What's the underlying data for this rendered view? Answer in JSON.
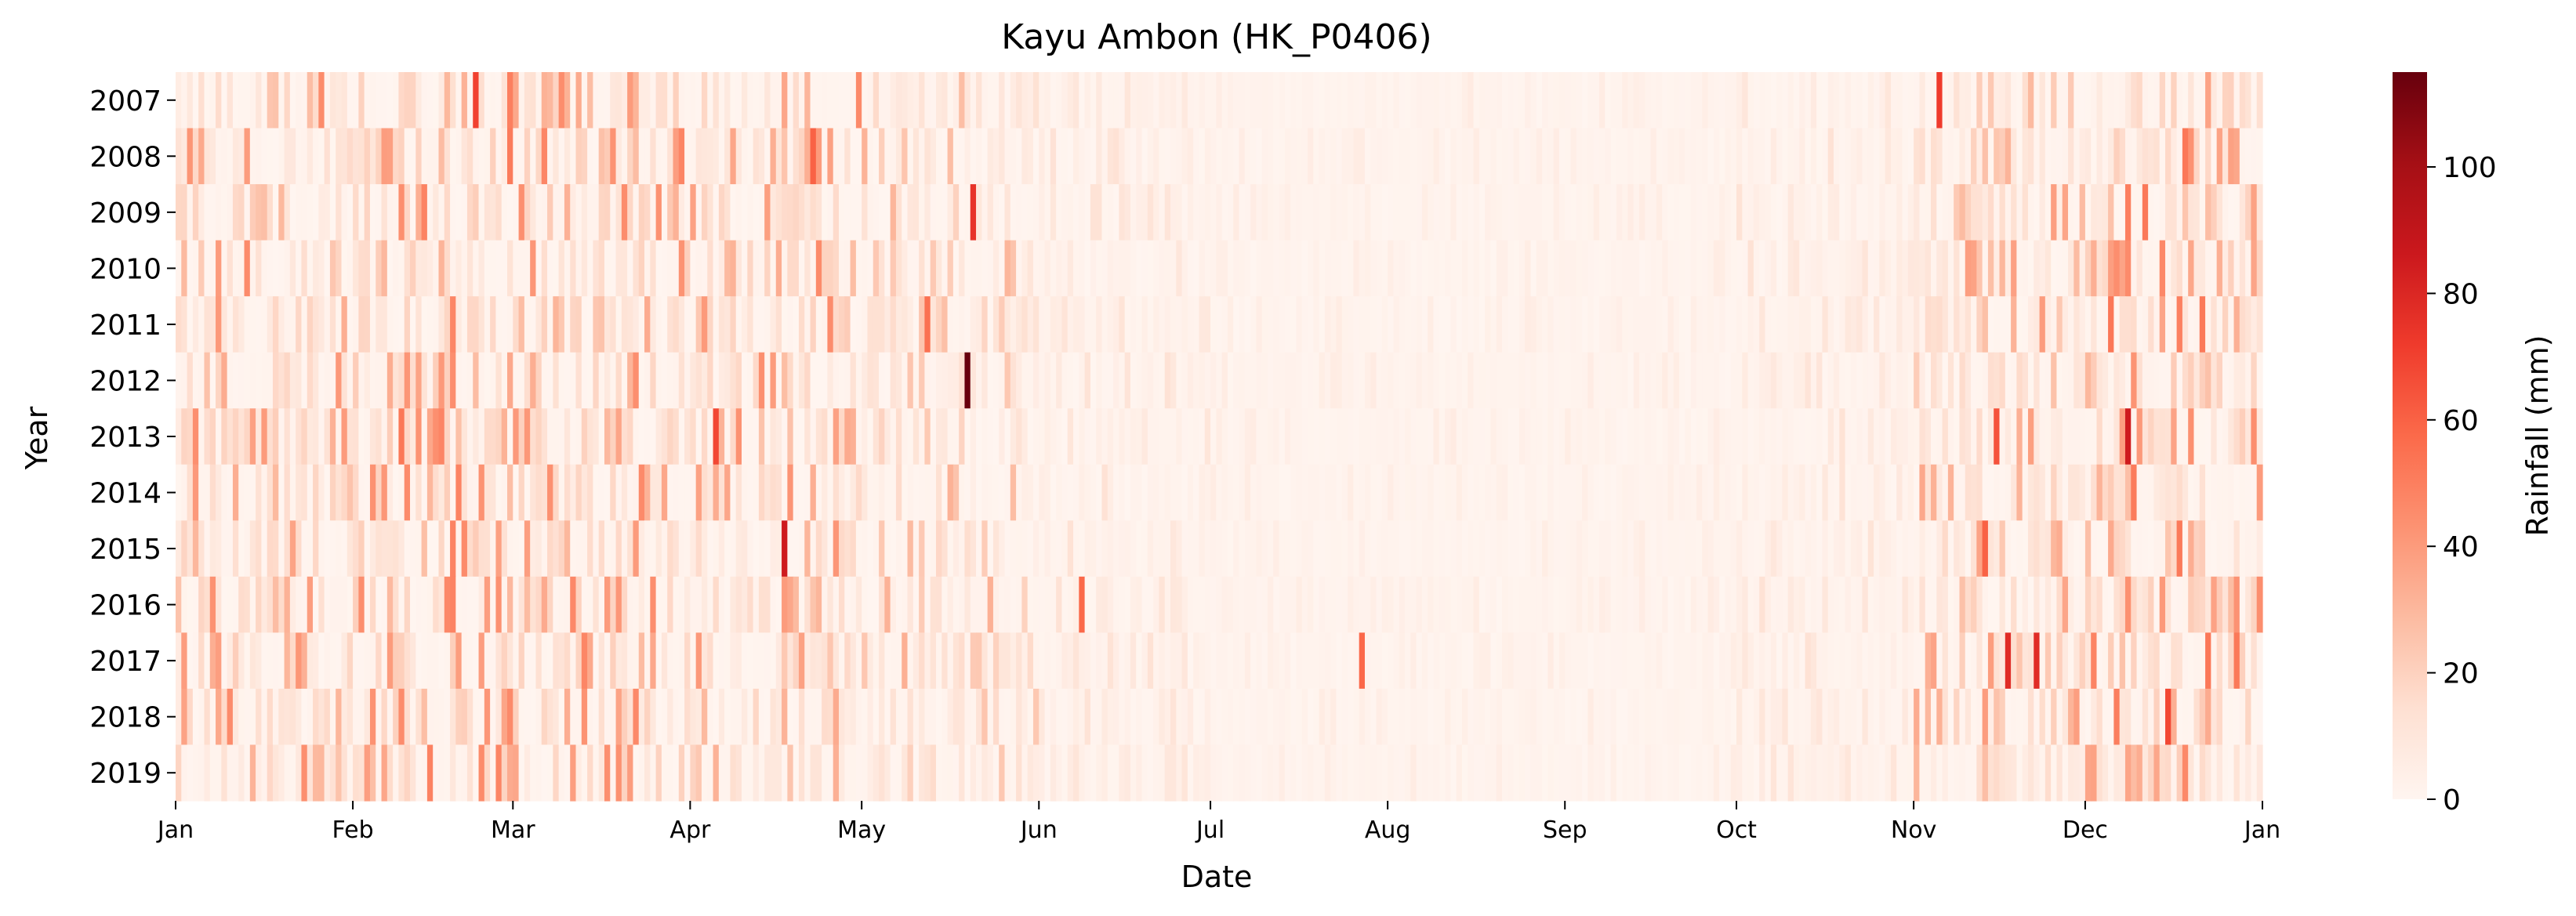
{
  "chart_data": {
    "type": "heatmap",
    "title": "Kayu Ambon (HK_P0406)",
    "xlabel": "Date",
    "ylabel": "Year",
    "colorbar_label": "Rainfall (mm)",
    "color_range": [
      0,
      115
    ],
    "colorbar_ticks": [
      "0",
      "20",
      "40",
      "60",
      "80",
      "100"
    ],
    "colormap": "Reds",
    "colors": {
      "low": "#fff5f0",
      "high": "#67000d"
    },
    "rows": [
      "2007",
      "2008",
      "2009",
      "2010",
      "2011",
      "2012",
      "2013",
      "2014",
      "2015",
      "2016",
      "2017",
      "2018",
      "2019"
    ],
    "x_ticks": [
      "Jan",
      "Feb",
      "Mar",
      "Apr",
      "May",
      "Jun",
      "Jul",
      "Aug",
      "Sep",
      "Oct",
      "Nov",
      "Dec",
      "Jan"
    ],
    "x_tick_days": [
      1,
      32,
      60,
      91,
      121,
      152,
      182,
      213,
      244,
      274,
      305,
      335,
      366
    ],
    "days_per_row": 365,
    "typical_daily_rainfall_by_month_mm": [
      14,
      16,
      15,
      14,
      10,
      4,
      2,
      2,
      2,
      4,
      12,
      16
    ],
    "notable_events": [
      {
        "year": "2012",
        "date": "May 19",
        "rainfall_mm": 115
      },
      {
        "year": "2015",
        "date": "Apr 17",
        "rainfall_mm": 85
      },
      {
        "year": "2013",
        "date": "Dec 8",
        "rainfall_mm": 85
      },
      {
        "year": "2009",
        "date": "May 20",
        "rainfall_mm": 75
      },
      {
        "year": "2017",
        "date": "Nov 17",
        "rainfall_mm": 78
      },
      {
        "year": "2017",
        "date": "Nov 22",
        "rainfall_mm": 78
      },
      {
        "year": "2007",
        "date": "Nov 5",
        "rainfall_mm": 72
      },
      {
        "year": "2007",
        "date": "Feb 22",
        "rainfall_mm": 70
      },
      {
        "year": "2013",
        "date": "Apr 5",
        "rainfall_mm": 68
      },
      {
        "year": "2018",
        "date": "Dec 15",
        "rainfall_mm": 68
      },
      {
        "year": "2013",
        "date": "Nov 15",
        "rainfall_mm": 65
      },
      {
        "year": "2016",
        "date": "Jun 8",
        "rainfall_mm": 58
      },
      {
        "year": "2017",
        "date": "Jul 27",
        "rainfall_mm": 58
      },
      {
        "year": "2008",
        "date": "Apr 22",
        "rainfall_mm": 60
      },
      {
        "year": "2015",
        "date": "Nov 13",
        "rainfall_mm": 60
      },
      {
        "year": "2011",
        "date": "May 12",
        "rainfall_mm": 55
      }
    ]
  }
}
